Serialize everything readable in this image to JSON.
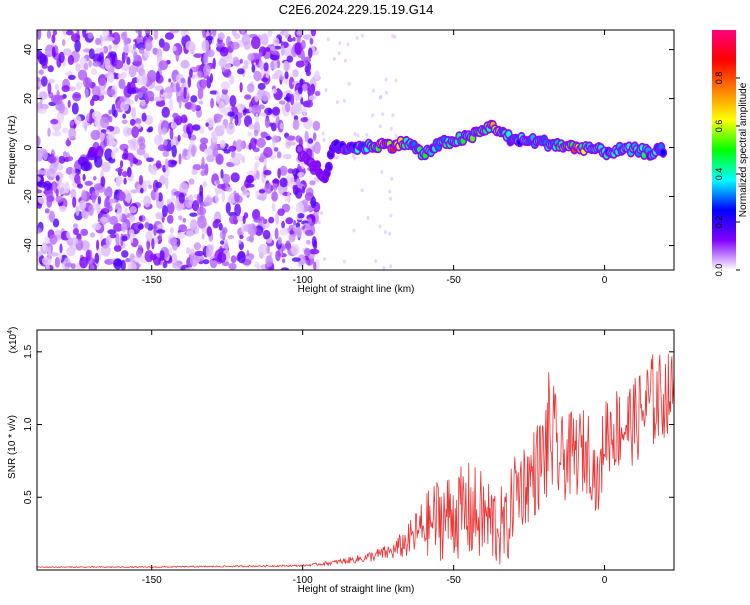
{
  "title": "C2E6.2024.229.15.19.G14",
  "chart_data": [
    {
      "type": "heatmap",
      "xlabel": "Height of straight line (km)",
      "ylabel": "Frequency (Hz)",
      "xlim": [
        -188,
        23
      ],
      "ylim": [
        -50,
        48
      ],
      "xticks": [
        -150,
        -100,
        -50,
        0
      ],
      "xtick_labels": [
        "-150",
        "-100",
        "-50",
        "0"
      ],
      "yticks": [
        -40,
        -20,
        0,
        20,
        40
      ],
      "ytick_labels": [
        "-40",
        "-20",
        "0",
        "20",
        "40"
      ],
      "noise_region_x": [
        -188,
        -95
      ],
      "signal_track": [
        {
          "x": -101,
          "y": -2,
          "a": 0.12
        },
        {
          "x": -92,
          "y": -12,
          "a": 0.2
        },
        {
          "x": -90,
          "y": 0,
          "a": 0.3
        },
        {
          "x": -85,
          "y": 0,
          "a": 0.35
        },
        {
          "x": -80,
          "y": 0,
          "a": 0.45
        },
        {
          "x": -75,
          "y": 1,
          "a": 0.75
        },
        {
          "x": -70,
          "y": 1,
          "a": 0.9
        },
        {
          "x": -65,
          "y": 2,
          "a": 0.55
        },
        {
          "x": -60,
          "y": -3,
          "a": 0.5
        },
        {
          "x": -55,
          "y": 1,
          "a": 0.45
        },
        {
          "x": -50,
          "y": 3,
          "a": 0.5
        },
        {
          "x": -45,
          "y": 4,
          "a": 0.55
        },
        {
          "x": -40,
          "y": 7,
          "a": 0.6
        },
        {
          "x": -37,
          "y": 9,
          "a": 0.85
        },
        {
          "x": -33,
          "y": 5,
          "a": 0.45
        },
        {
          "x": -30,
          "y": 3,
          "a": 0.4
        },
        {
          "x": -25,
          "y": 3,
          "a": 0.5
        },
        {
          "x": -20,
          "y": 2,
          "a": 0.4
        },
        {
          "x": -15,
          "y": 1,
          "a": 0.55
        },
        {
          "x": -10,
          "y": 0,
          "a": 0.9
        },
        {
          "x": -5,
          "y": 0,
          "a": 0.5
        },
        {
          "x": 0,
          "y": -2,
          "a": 0.45
        },
        {
          "x": 5,
          "y": -1,
          "a": 0.4
        },
        {
          "x": 10,
          "y": -1,
          "a": 0.55
        },
        {
          "x": 15,
          "y": -2,
          "a": 0.45
        },
        {
          "x": 20,
          "y": -1,
          "a": 0.4
        }
      ]
    },
    {
      "type": "line",
      "xlabel": "Height of straight line (km)",
      "ylabel": "SNR (10 * v/v)",
      "y_multiplier_label": "(x10",
      "y_multiplier_exp": "4",
      "y_multiplier_close": ")",
      "xlim": [
        -188,
        23
      ],
      "ylim": [
        0,
        1.65
      ],
      "xticks": [
        -150,
        -100,
        -50,
        0
      ],
      "xtick_labels": [
        "-150",
        "-100",
        "-50",
        "0"
      ],
      "yticks": [
        0.5,
        1.0,
        1.5
      ],
      "ytick_labels": [
        "0.5",
        "1.0",
        "1.5"
      ],
      "series": [
        {
          "color": "#ee3333",
          "x": [
            -188,
            -150,
            -100,
            -90,
            -80,
            -70,
            -65,
            -60,
            -55,
            -50,
            -45,
            -40,
            -35,
            -32,
            -30,
            -25,
            -20,
            -18,
            -15,
            -10,
            -5,
            -2,
            0,
            5,
            10,
            15,
            20,
            23
          ],
          "y": [
            0.02,
            0.02,
            0.03,
            0.05,
            0.08,
            0.13,
            0.2,
            0.3,
            0.36,
            0.38,
            0.4,
            0.36,
            0.3,
            0.28,
            0.55,
            0.62,
            0.78,
            0.95,
            0.75,
            0.8,
            0.82,
            0.55,
            0.95,
            0.98,
            1.02,
            1.15,
            1.2,
            1.25
          ],
          "noise": [
            0.003,
            0.004,
            0.006,
            0.015,
            0.03,
            0.06,
            0.12,
            0.2,
            0.3,
            0.3,
            0.35,
            0.32,
            0.3,
            0.25,
            0.3,
            0.3,
            0.35,
            0.5,
            0.3,
            0.3,
            0.3,
            0.2,
            0.3,
            0.3,
            0.3,
            0.35,
            0.3,
            0.25
          ]
        }
      ]
    }
  ],
  "colorbar": {
    "label": "Normalized spectral amplitude",
    "colors": [
      "#ffffff",
      "#8000ff",
      "#0000ff",
      "#00ffff",
      "#00ff00",
      "#ffff00",
      "#ff8000",
      "#ff0000",
      "#ff0080"
    ],
    "ticks": [
      0.0,
      0.2,
      0.4,
      0.6,
      0.8
    ],
    "tick_labels": [
      "0.0",
      "0.2",
      "0.4",
      "0.6",
      "0.8"
    ]
  }
}
